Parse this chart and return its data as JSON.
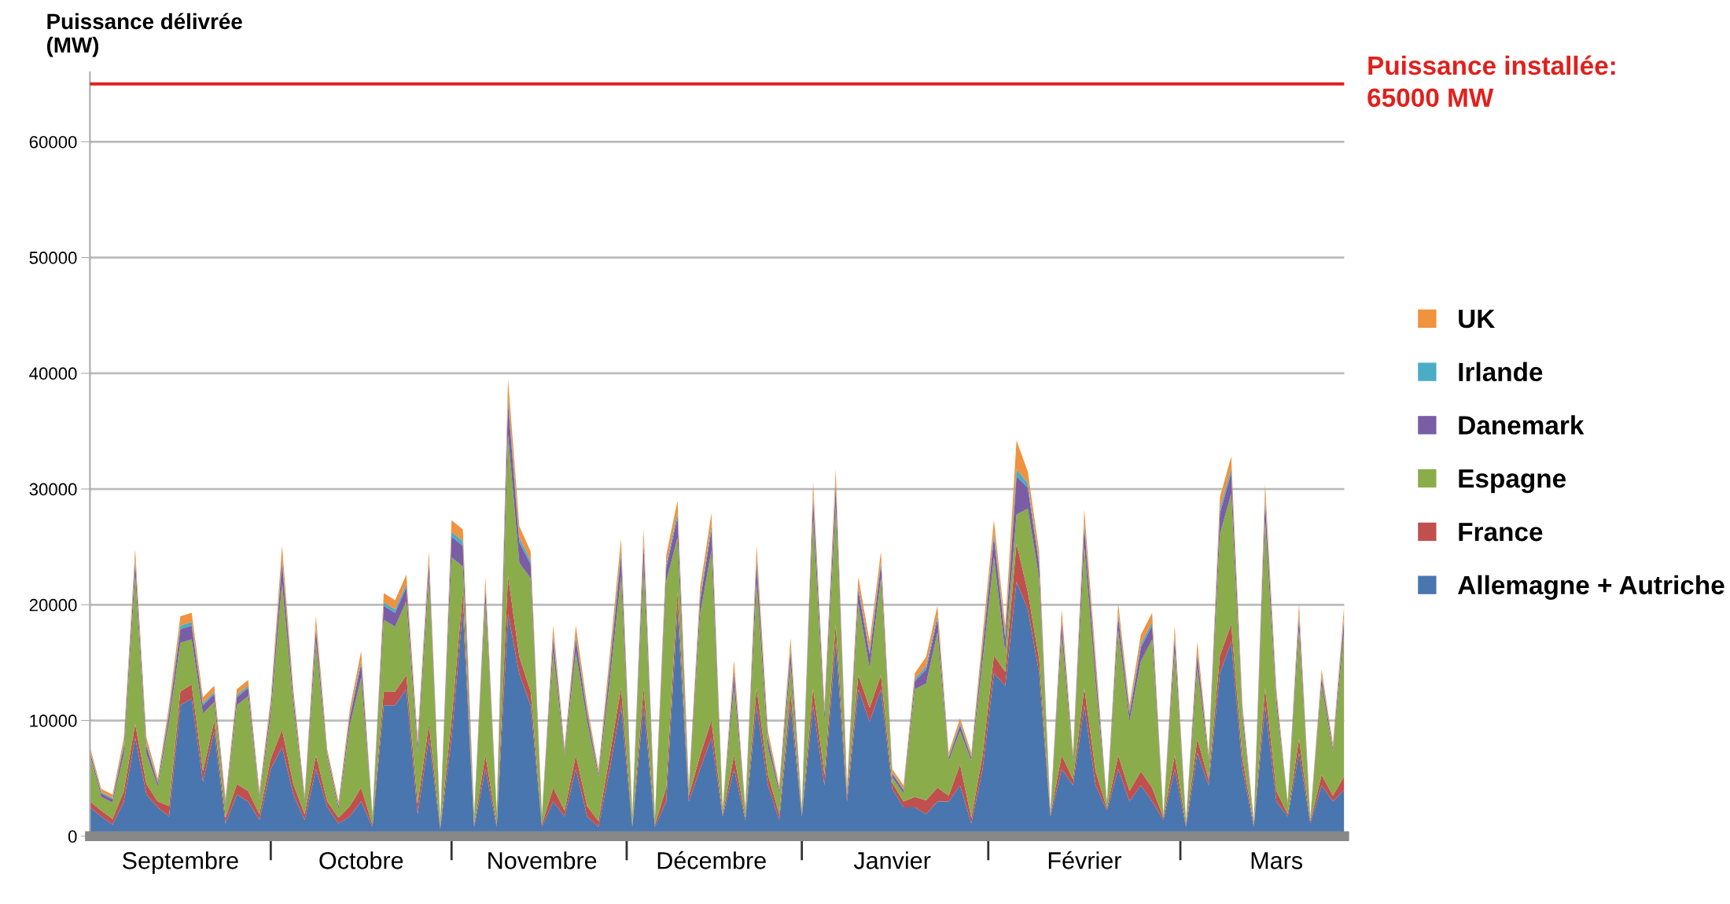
{
  "chart_data": {
    "type": "area",
    "stacked": true,
    "ylabel": "Puissance délivrée\n(MW)",
    "categories": [
      null,
      null,
      null,
      null,
      null,
      null,
      null,
      null,
      "Septembre",
      null,
      null,
      null,
      null,
      null,
      null,
      null,
      null,
      null,
      null,
      null,
      null,
      null,
      null,
      null,
      "Octobre",
      null,
      null,
      null,
      null,
      null,
      null,
      null,
      null,
      null,
      null,
      null,
      null,
      null,
      null,
      null,
      "Novembre",
      null,
      null,
      null,
      null,
      null,
      null,
      null,
      null,
      null,
      null,
      null,
      null,
      null,
      null,
      "Décembre",
      null,
      null,
      null,
      null,
      null,
      null,
      null,
      null,
      null,
      null,
      null,
      null,
      null,
      null,
      null,
      "Janvier",
      null,
      null,
      null,
      null,
      null,
      null,
      null,
      null,
      null,
      null,
      null,
      null,
      null,
      null,
      null,
      null,
      "Février",
      null,
      null,
      null,
      null,
      null,
      null,
      null,
      null,
      null,
      null,
      null,
      null,
      null,
      null,
      null,
      null,
      "Mars",
      null,
      null,
      null,
      null,
      null,
      null
    ],
    "series": [
      {
        "name": "Allemagne + Autriche",
        "color": "#4a76b0",
        "values": [
          2500,
          1700,
          1000,
          3000,
          8500,
          3600,
          2500,
          1700,
          11300,
          11900,
          4700,
          9100,
          1100,
          3600,
          3000,
          1400,
          5800,
          7700,
          3600,
          1400,
          5800,
          2500,
          1100,
          1700,
          3000,
          800,
          11300,
          11300,
          12700,
          1900,
          8500,
          600,
          8500,
          19600,
          800,
          5800,
          800,
          19200,
          14000,
          11300,
          800,
          3000,
          1700,
          5800,
          1700,
          800,
          5800,
          11300,
          800,
          11300,
          800,
          3000,
          19600,
          3000,
          5800,
          8500,
          1700,
          5800,
          1400,
          11300,
          4400,
          1400,
          11300,
          1700,
          11300,
          4400,
          16800,
          3000,
          12700,
          9900,
          12700,
          4100,
          2500,
          2500,
          1900,
          3000,
          3000,
          4400,
          1100,
          5800,
          14100,
          13000,
          22000,
          19600,
          14100,
          1700,
          5800,
          4400,
          11300,
          4400,
          2200,
          5800,
          3000,
          4400,
          3000,
          1400,
          5800,
          800,
          7200,
          4400,
          14100,
          16800,
          5800,
          800,
          11300,
          3000,
          1700,
          7200,
          1100,
          4400,
          3000,
          4000
        ]
      },
      {
        "name": "France",
        "color": "#c0504d",
        "values": [
          500,
          500,
          500,
          900,
          1200,
          900,
          500,
          900,
          1200,
          1200,
          900,
          900,
          500,
          900,
          900,
          500,
          900,
          1500,
          900,
          500,
          1200,
          500,
          500,
          900,
          1200,
          200,
          1200,
          1200,
          1200,
          900,
          1200,
          200,
          1500,
          1500,
          200,
          1200,
          200,
          3300,
          1500,
          1200,
          200,
          1200,
          500,
          1200,
          900,
          500,
          1200,
          1500,
          200,
          1500,
          200,
          1200,
          1500,
          500,
          1200,
          1500,
          200,
          1200,
          200,
          1500,
          900,
          500,
          1200,
          200,
          1500,
          900,
          1500,
          500,
          1200,
          1200,
          1200,
          500,
          500,
          900,
          1200,
          1200,
          500,
          1800,
          500,
          1200,
          1500,
          1200,
          3300,
          1500,
          1200,
          200,
          1200,
          500,
          1500,
          1200,
          200,
          1200,
          900,
          1200,
          1200,
          200,
          1200,
          200,
          1200,
          500,
          1500,
          1500,
          900,
          200,
          1500,
          900,
          200,
          1200,
          200,
          900,
          500,
          1200
        ]
      },
      {
        "name": "Espagne",
        "color": "#8aac4b",
        "values": [
          4000,
          1200,
          1400,
          3200,
          12800,
          2600,
          1300,
          7300,
          4200,
          3900,
          5000,
          1600,
          1000,
          6800,
          8200,
          1300,
          3800,
          12700,
          6800,
          1000,
          9700,
          3800,
          700,
          7000,
          9500,
          650,
          6200,
          5600,
          6400,
          4300,
          12600,
          350,
          14100,
          2200,
          650,
          13100,
          950,
          12200,
          8100,
          9800,
          650,
          11700,
          4800,
          8900,
          7300,
          3800,
          6400,
          9700,
          650,
          10500,
          450,
          17800,
          4700,
          200,
          12200,
          14700,
          350,
          5900,
          650,
          9100,
          2400,
          1800,
          2300,
          350,
          14600,
          4600,
          10200,
          200,
          6200,
          3400,
          8400,
          500,
          700,
          9300,
          10100,
          13400,
          3000,
          2900,
          4900,
          8100,
          8500,
          1700,
          2500,
          7200,
          7000,
          50,
          10300,
          1600,
          12200,
          7600,
          350,
          10800,
          6000,
          9500,
          12800,
          50,
          8900,
          150,
          6100,
          1600,
          10500,
          11300,
          3200,
          150,
          14400,
          7400,
          850,
          9400,
          150,
          7700,
          3800,
          12500
        ]
      },
      {
        "name": "Danemark",
        "color": "#7a5ea5",
        "values": [
          300,
          300,
          300,
          700,
          1200,
          700,
          300,
          700,
          1200,
          1200,
          700,
          700,
          300,
          700,
          700,
          300,
          700,
          1800,
          700,
          300,
          1200,
          300,
          300,
          700,
          1200,
          100,
          1200,
          1200,
          1200,
          700,
          1200,
          100,
          1800,
          1800,
          100,
          1200,
          100,
          2800,
          1800,
          1200,
          100,
          1200,
          300,
          1200,
          700,
          300,
          1200,
          1800,
          100,
          1800,
          100,
          1200,
          1800,
          300,
          1200,
          1800,
          100,
          1200,
          100,
          1800,
          700,
          300,
          1200,
          100,
          1800,
          700,
          1800,
          300,
          1200,
          1200,
          1200,
          300,
          300,
          700,
          1200,
          1200,
          300,
          500,
          300,
          1200,
          1800,
          1200,
          3300,
          1800,
          1200,
          100,
          1200,
          300,
          1800,
          1200,
          100,
          1200,
          700,
          1200,
          1200,
          100,
          1200,
          100,
          1200,
          300,
          1800,
          1800,
          700,
          100,
          1800,
          700,
          100,
          1200,
          100,
          700,
          300,
          1200
        ]
      },
      {
        "name": "Irlande",
        "color": "#4bacc6",
        "values": [
          100,
          100,
          100,
          200,
          300,
          200,
          100,
          200,
          300,
          300,
          200,
          200,
          100,
          200,
          200,
          100,
          200,
          400,
          200,
          100,
          300,
          100,
          100,
          200,
          300,
          50,
          300,
          300,
          300,
          200,
          300,
          50,
          400,
          400,
          50,
          300,
          50,
          500,
          400,
          300,
          50,
          300,
          100,
          300,
          200,
          100,
          300,
          400,
          50,
          400,
          50,
          300,
          400,
          100,
          300,
          400,
          50,
          300,
          50,
          400,
          200,
          100,
          300,
          50,
          400,
          200,
          400,
          100,
          300,
          300,
          300,
          100,
          100,
          200,
          300,
          300,
          100,
          200,
          100,
          300,
          400,
          300,
          600,
          400,
          300,
          50,
          300,
          100,
          400,
          300,
          50,
          300,
          200,
          300,
          300,
          50,
          300,
          50,
          300,
          100,
          400,
          400,
          200,
          50,
          400,
          200,
          50,
          300,
          50,
          200,
          100,
          300
        ]
      },
      {
        "name": "UK",
        "color": "#f0923e",
        "values": [
          300,
          300,
          300,
          500,
          800,
          500,
          300,
          500,
          800,
          800,
          500,
          500,
          300,
          500,
          500,
          300,
          500,
          1000,
          500,
          300,
          800,
          300,
          300,
          500,
          800,
          100,
          800,
          800,
          800,
          500,
          800,
          100,
          1000,
          1000,
          100,
          800,
          100,
          1500,
          1000,
          800,
          100,
          800,
          300,
          800,
          500,
          300,
          800,
          1000,
          100,
          1000,
          100,
          800,
          1000,
          300,
          800,
          1000,
          100,
          800,
          100,
          1000,
          500,
          300,
          800,
          100,
          1000,
          500,
          1000,
          300,
          800,
          800,
          800,
          300,
          300,
          500,
          800,
          800,
          300,
          400,
          300,
          800,
          1000,
          800,
          2500,
          1000,
          800,
          100,
          800,
          300,
          1000,
          800,
          100,
          800,
          500,
          800,
          800,
          100,
          800,
          100,
          800,
          300,
          1000,
          1000,
          500,
          100,
          1000,
          500,
          100,
          800,
          100,
          500,
          300,
          800
        ]
      }
    ],
    "ylim": [
      0,
      66000
    ],
    "yticks": [
      0,
      10000,
      20000,
      30000,
      40000,
      50000,
      60000
    ],
    "grid": "y",
    "legend": "right",
    "ref_lines": [
      {
        "axis": "y",
        "value": 65000,
        "label": "Puissance installée:\n65000 MW",
        "color": "#e0201c"
      }
    ]
  }
}
